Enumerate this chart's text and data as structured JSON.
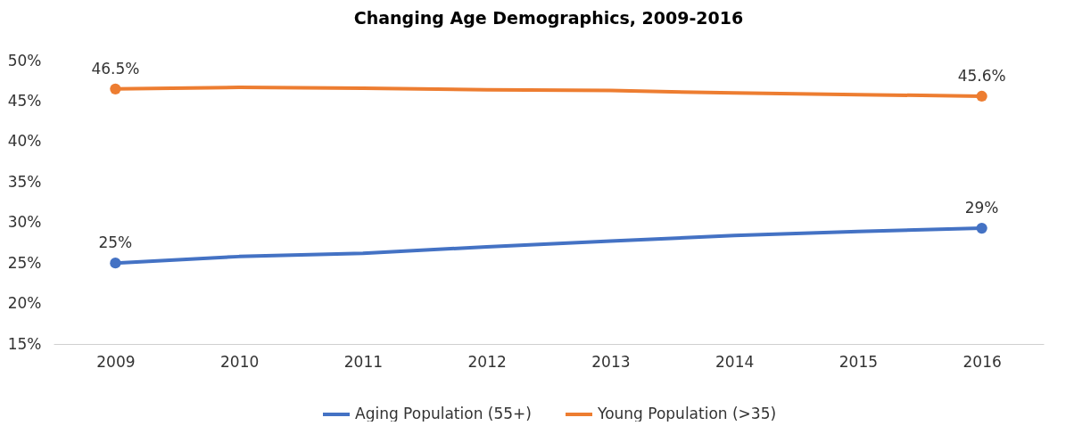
{
  "chart_data": {
    "type": "line",
    "title": "Changing Age Demographics, 2009-2016",
    "categories": [
      "2009",
      "2010",
      "2011",
      "2012",
      "2013",
      "2014",
      "2015",
      "2016"
    ],
    "series": [
      {
        "name": "Aging Population (55+)",
        "color": "#4472c4",
        "values": [
          25,
          25.8,
          26.2,
          27.0,
          27.7,
          28.4,
          28.9,
          29.3
        ],
        "value_labels": [
          "25%",
          null,
          null,
          null,
          null,
          null,
          null,
          "29%"
        ]
      },
      {
        "name": "Young Population (>35)",
        "color": "#ed7d31",
        "values": [
          46.5,
          46.7,
          46.6,
          46.4,
          46.3,
          46.0,
          45.8,
          45.6
        ],
        "value_labels": [
          "46.5%",
          null,
          null,
          null,
          null,
          null,
          null,
          "45.6%"
        ]
      }
    ],
    "ylim": [
      15,
      50
    ],
    "yticks": [
      {
        "value": 15,
        "label": "15%"
      },
      {
        "value": 20,
        "label": "20%"
      },
      {
        "value": 25,
        "label": "25%"
      },
      {
        "value": 30,
        "label": "30%"
      },
      {
        "value": 35,
        "label": "35%"
      },
      {
        "value": 40,
        "label": "40%"
      },
      {
        "value": 45,
        "label": "45%"
      },
      {
        "value": 50,
        "label": "50%"
      }
    ],
    "grid": false,
    "legend": "bottom",
    "line_style": "solid"
  }
}
